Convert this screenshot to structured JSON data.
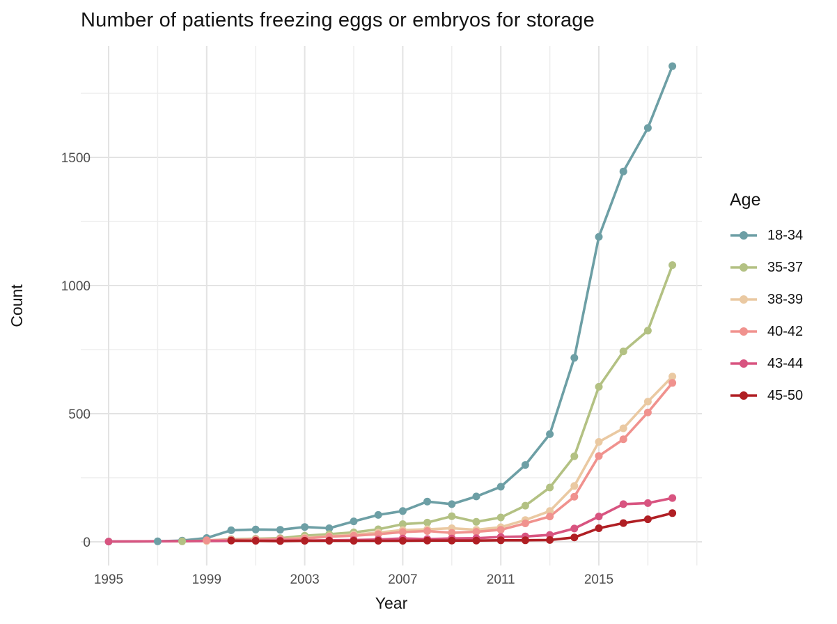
{
  "title": "Number of patients freezing eggs or embryos for storage",
  "legend": {
    "title": "Age",
    "position": "right",
    "entries": [
      {
        "label": "18-34",
        "color": "#6d9fa5"
      },
      {
        "label": "35-37",
        "color": "#b3c183"
      },
      {
        "label": "38-39",
        "color": "#eac9a2"
      },
      {
        "label": "40-42",
        "color": "#f0928e"
      },
      {
        "label": "43-44",
        "color": "#d85480"
      },
      {
        "label": "45-50",
        "color": "#b01f24"
      }
    ]
  },
  "chart_data": {
    "type": "line",
    "title": "Number of patients freezing eggs or embryos for storage",
    "xlabel": "Year",
    "ylabel": "Count",
    "x": [
      1995,
      1996,
      1997,
      1998,
      1999,
      2000,
      2001,
      2002,
      2003,
      2004,
      2005,
      2006,
      2007,
      2008,
      2009,
      2010,
      2011,
      2012,
      2013,
      2014,
      2015,
      2016,
      2017,
      2018
    ],
    "series": [
      {
        "name": "18-34",
        "color": "#6d9fa5",
        "values": [
          1,
          null,
          2,
          5,
          15,
          45,
          48,
          47,
          58,
          53,
          80,
          105,
          120,
          157,
          147,
          177,
          215,
          300,
          420,
          718,
          1190,
          1445,
          1615,
          1856
        ]
      },
      {
        "name": "35-37",
        "color": "#b3c183",
        "values": [
          null,
          null,
          null,
          2,
          5,
          10,
          12,
          14,
          24,
          30,
          37,
          49,
          69,
          75,
          100,
          78,
          95,
          141,
          212,
          334,
          605,
          743,
          824,
          1080
        ]
      },
      {
        "name": "38-39",
        "color": "#eac9a2",
        "values": [
          null,
          null,
          null,
          null,
          3,
          6,
          8,
          10,
          16,
          22,
          28,
          36,
          46,
          49,
          53,
          47,
          57,
          85,
          120,
          218,
          390,
          443,
          547,
          645
        ]
      },
      {
        "name": "40-42",
        "color": "#f0928e",
        "values": [
          null,
          null,
          null,
          null,
          6,
          8,
          9,
          11,
          13,
          20,
          24,
          30,
          38,
          42,
          35,
          39,
          47,
          72,
          99,
          176,
          335,
          400,
          505,
          620
        ]
      },
      {
        "name": "43-44",
        "color": "#d85480",
        "values": [
          1,
          null,
          null,
          null,
          null,
          null,
          null,
          5,
          5,
          6,
          7,
          9,
          13,
          11,
          13,
          14,
          19,
          21,
          27,
          52,
          99,
          147,
          151,
          171
        ]
      },
      {
        "name": "45-50",
        "color": "#b01f24",
        "values": [
          null,
          null,
          null,
          null,
          null,
          5,
          4,
          3,
          4,
          4,
          4,
          4,
          4,
          5,
          5,
          5,
          6,
          6,
          7,
          17,
          53,
          73,
          88,
          112
        ]
      }
    ],
    "x_ticks": {
      "values": [
        1995,
        1999,
        2003,
        2007,
        2011,
        2015
      ],
      "labels": [
        "1995",
        "1999",
        "2003",
        "2007",
        "2011",
        "2015"
      ]
    },
    "y_ticks": {
      "values": [
        0,
        500,
        1000,
        1500
      ],
      "labels": [
        "0",
        "500",
        "1000",
        "1500"
      ]
    },
    "x_gridlines": [
      1995,
      1997,
      1999,
      2001,
      2003,
      2005,
      2007,
      2009,
      2011,
      2013,
      2015,
      2017,
      2019
    ],
    "y_gridlines": [
      0,
      250,
      500,
      750,
      1000,
      1250,
      1500,
      1750
    ],
    "xlim": [
      1993.9,
      2019.2
    ],
    "ylim": [
      -90,
      1940
    ],
    "grid": true,
    "legend_position": "right"
  },
  "colors": {
    "background": "#ffffff",
    "grid_major": "#e3e3e3",
    "grid_minor": "#ededed",
    "tick_label": "#4d4d4d",
    "text": "#141414"
  }
}
